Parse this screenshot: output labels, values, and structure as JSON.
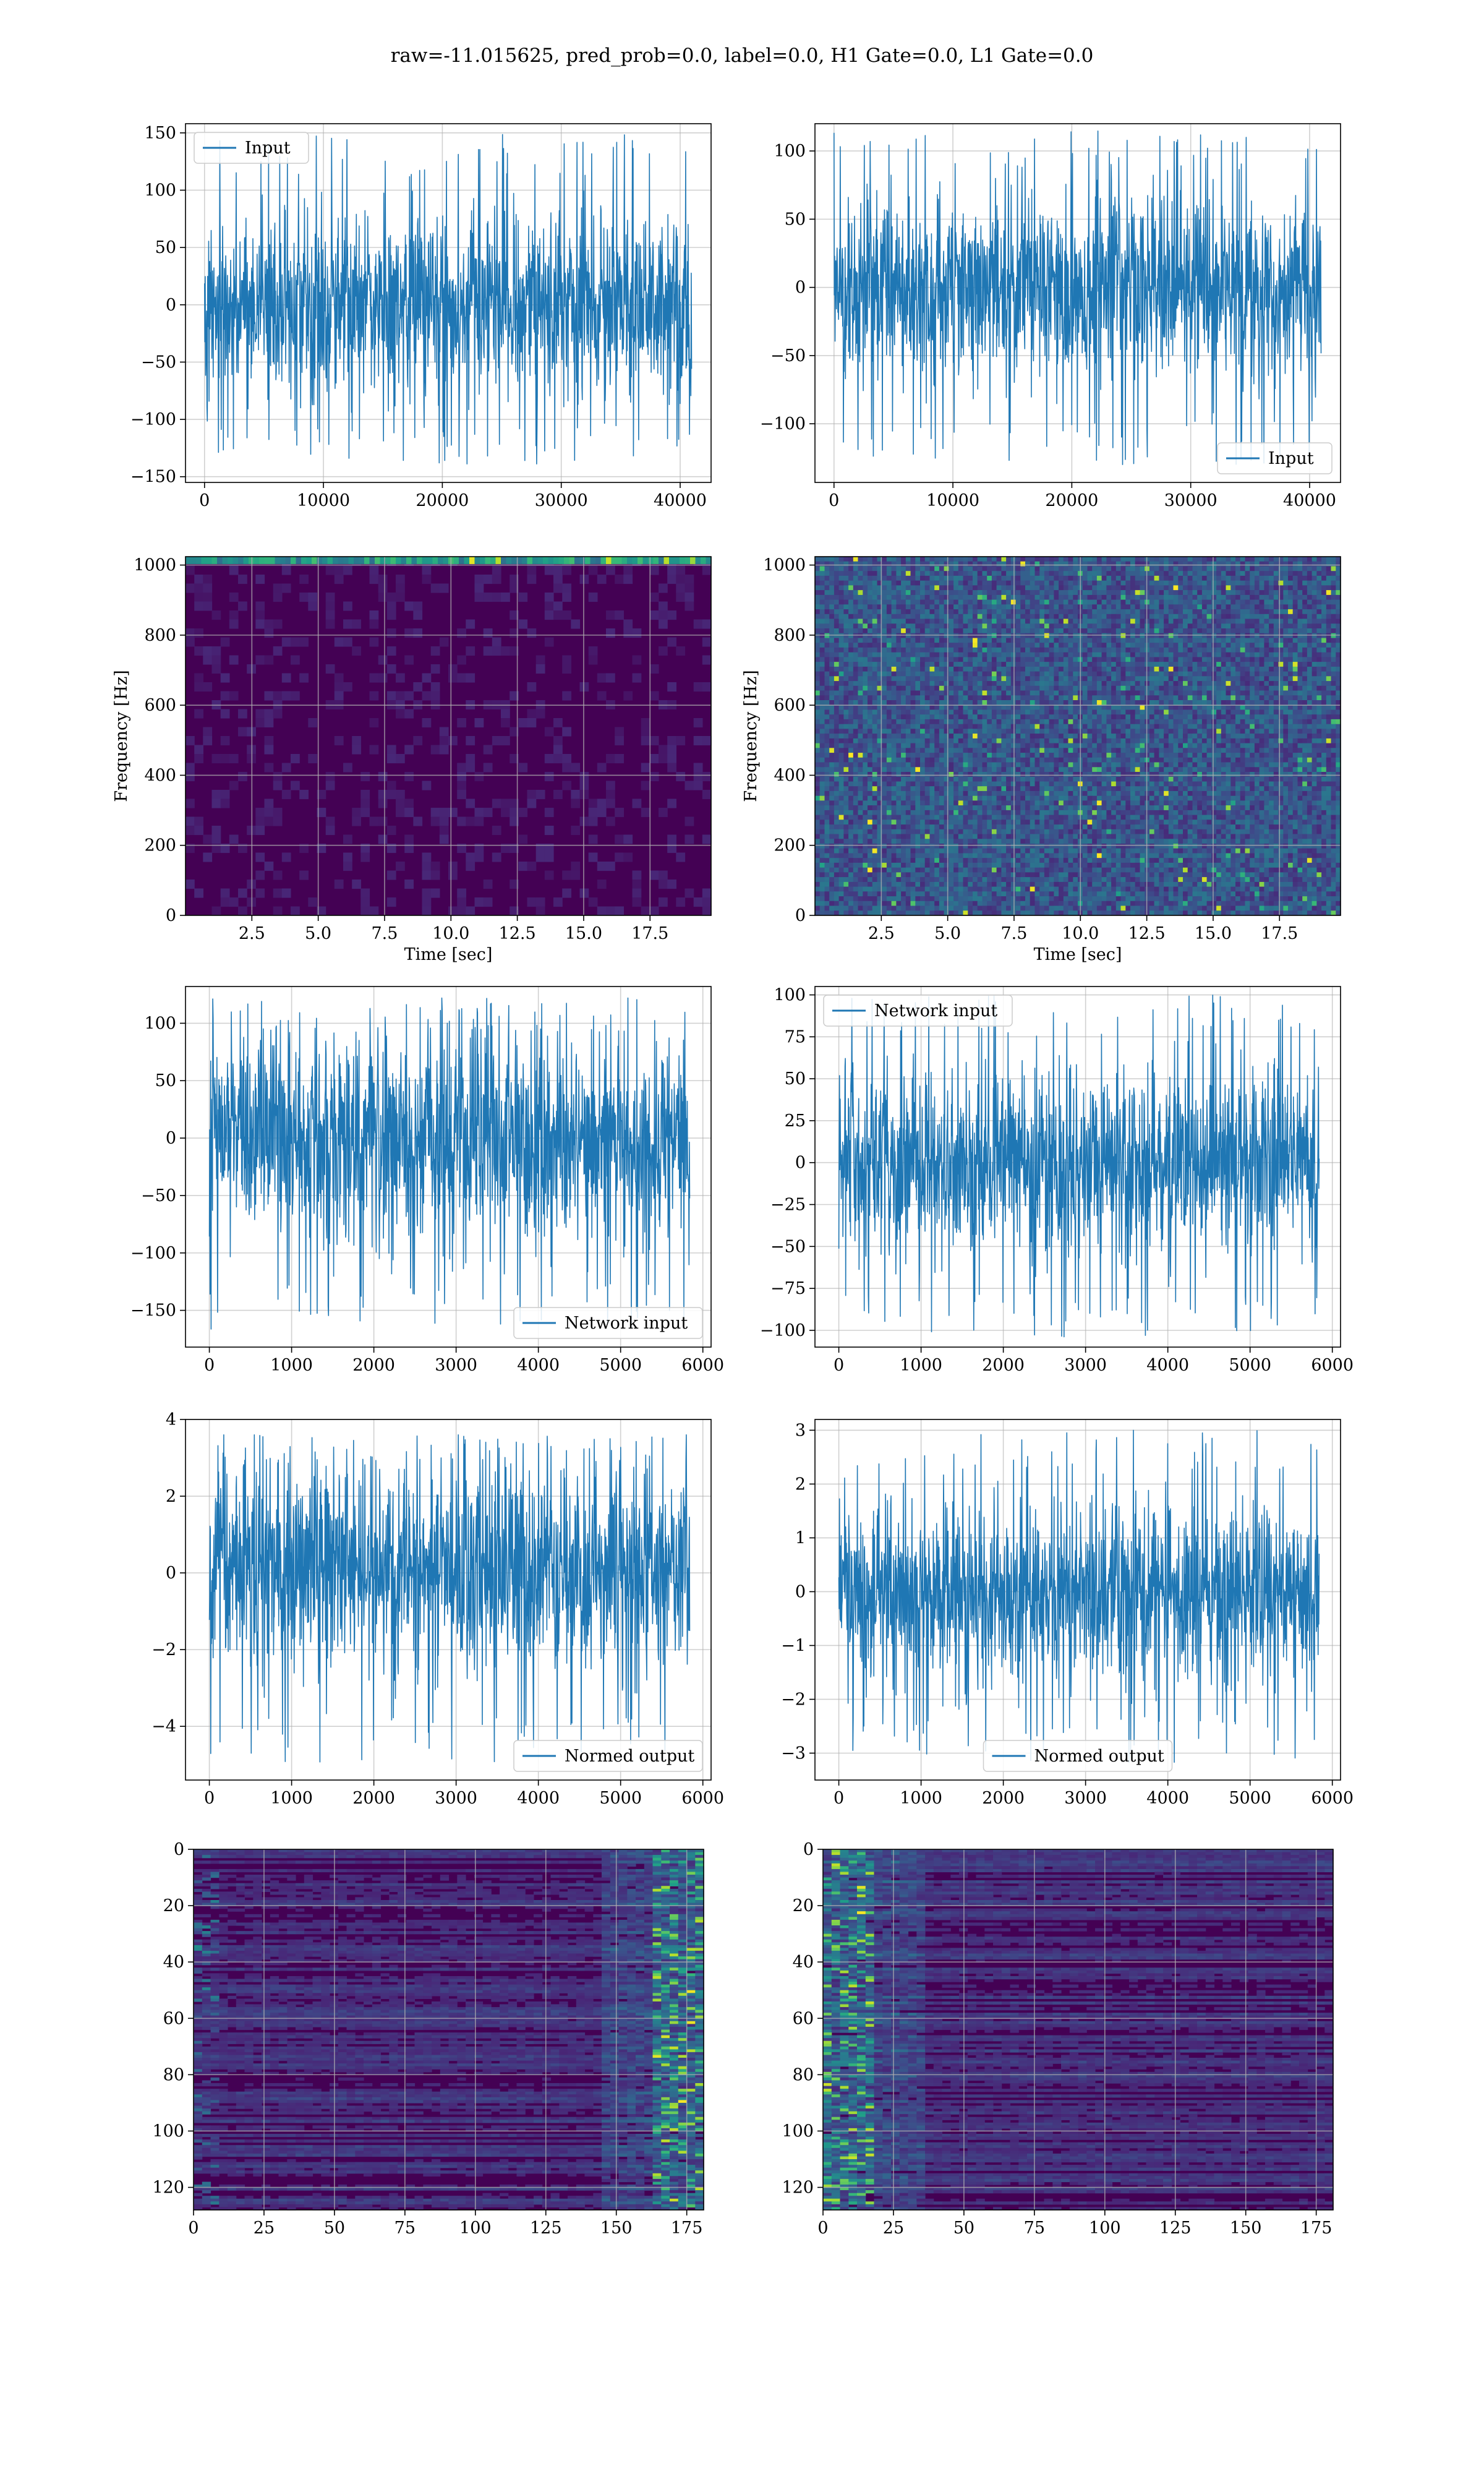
{
  "figure": {
    "suptitle": "raw=-11.015625, pred_prob=0.0, label=0.0, H1 Gate=0.0, L1 Gate=0.0"
  },
  "colors": {
    "series": "#1f77b4",
    "grid": "#b0b0b0",
    "viridis_dark": "#440154",
    "viridis_mid": "#21918c",
    "viridis_light": "#fde725"
  },
  "chart_data": [
    {
      "id": "h1-input",
      "type": "line",
      "signal": "noise",
      "xlim": [
        -1600,
        42600
      ],
      "ylim": [
        -155,
        158
      ],
      "xticks": [
        0,
        10000,
        20000,
        30000,
        40000
      ],
      "yticks": [
        -150,
        -100,
        -50,
        0,
        50,
        100,
        150
      ],
      "x_range": [
        0,
        40960
      ],
      "envelope": [
        -140,
        150
      ],
      "legend": "Input",
      "legend_loc": "upper left",
      "xlabel": "",
      "ylabel": "",
      "grid": true
    },
    {
      "id": "l1-input",
      "type": "line",
      "signal": "noise",
      "xlim": [
        -1600,
        42600
      ],
      "ylim": [
        -143,
        120
      ],
      "xticks": [
        0,
        10000,
        20000,
        30000,
        40000
      ],
      "yticks": [
        -100,
        -50,
        0,
        50,
        100
      ],
      "x_range": [
        0,
        40960
      ],
      "envelope": [
        -130,
        118
      ],
      "legend": "Input",
      "legend_loc": "lower right",
      "xlabel": "",
      "ylabel": "",
      "grid": true
    },
    {
      "id": "h1-spectrogram",
      "type": "heatmap",
      "style": "dark-with-top-band",
      "xlim": [
        0,
        19.8
      ],
      "ylim": [
        0,
        1024
      ],
      "xticks": [
        2.5,
        5.0,
        7.5,
        10.0,
        12.5,
        15.0,
        17.5
      ],
      "yticks": [
        0,
        200,
        400,
        600,
        800,
        1000
      ],
      "xlabel": "Time [sec]",
      "ylabel": "Frequency [Hz]",
      "colormap": "viridis",
      "grid": true
    },
    {
      "id": "l1-spectrogram",
      "type": "heatmap",
      "style": "speckle",
      "xlim": [
        0,
        19.8
      ],
      "ylim": [
        0,
        1024
      ],
      "xticks": [
        2.5,
        5.0,
        7.5,
        10.0,
        12.5,
        15.0,
        17.5
      ],
      "yticks": [
        0,
        200,
        400,
        600,
        800,
        1000
      ],
      "xlabel": "Time [sec]",
      "ylabel": "Frequency [Hz]",
      "colormap": "viridis",
      "grid": true
    },
    {
      "id": "h1-network-input",
      "type": "line",
      "signal": "noise",
      "xlim": [
        -290,
        6100
      ],
      "ylim": [
        -182,
        132
      ],
      "xticks": [
        0,
        1000,
        2000,
        3000,
        4000,
        5000,
        6000
      ],
      "yticks": [
        -150,
        -100,
        -50,
        0,
        50,
        100
      ],
      "x_range": [
        0,
        5840
      ],
      "envelope": [
        -167,
        122
      ],
      "legend": "Network input",
      "legend_loc": "lower right",
      "xlabel": "",
      "ylabel": "",
      "grid": true
    },
    {
      "id": "l1-network-input",
      "type": "line",
      "signal": "noise",
      "xlim": [
        -290,
        6100
      ],
      "ylim": [
        -110,
        105
      ],
      "xticks": [
        0,
        1000,
        2000,
        3000,
        4000,
        5000,
        6000
      ],
      "yticks": [
        -100,
        -75,
        -50,
        -25,
        0,
        25,
        50,
        75,
        100
      ],
      "x_range": [
        0,
        5840
      ],
      "envelope": [
        -104,
        100
      ],
      "legend": "Network input",
      "legend_loc": "upper left",
      "xlabel": "",
      "ylabel": "",
      "grid": true
    },
    {
      "id": "h1-normed-output",
      "type": "line",
      "signal": "noise",
      "xlim": [
        -290,
        6100
      ],
      "ylim": [
        -5.4,
        4.0
      ],
      "xticks": [
        0,
        1000,
        2000,
        3000,
        4000,
        5000,
        6000
      ],
      "yticks": [
        -4,
        -2,
        0,
        2,
        4
      ],
      "x_range": [
        0,
        5840
      ],
      "envelope": [
        -5.0,
        3.6
      ],
      "legend": "Normed output",
      "legend_loc": "lower right",
      "xlabel": "",
      "ylabel": "",
      "grid": true
    },
    {
      "id": "l1-normed-output",
      "type": "line",
      "signal": "noise",
      "xlim": [
        -290,
        6100
      ],
      "ylim": [
        -3.5,
        3.2
      ],
      "xticks": [
        0,
        1000,
        2000,
        3000,
        4000,
        5000,
        6000
      ],
      "yticks": [
        -3,
        -2,
        -1,
        0,
        1,
        2,
        3
      ],
      "x_range": [
        0,
        5840
      ],
      "envelope": [
        -3.2,
        3.0
      ],
      "legend": "Normed output",
      "legend_loc": "lower center",
      "xlabel": "",
      "ylabel": "",
      "grid": true
    },
    {
      "id": "h1-features",
      "type": "heatmap",
      "style": "rows-bright-right",
      "xlim": [
        0,
        181
      ],
      "ylim": [
        128,
        0
      ],
      "xticks": [
        0,
        25,
        50,
        75,
        100,
        125,
        150,
        175
      ],
      "yticks": [
        0,
        20,
        40,
        60,
        80,
        100,
        120
      ],
      "xlabel": "",
      "ylabel": "",
      "colormap": "viridis",
      "grid": true
    },
    {
      "id": "l1-features",
      "type": "heatmap",
      "style": "rows-bright-left",
      "xlim": [
        0,
        181
      ],
      "ylim": [
        128,
        0
      ],
      "xticks": [
        0,
        25,
        50,
        75,
        100,
        125,
        150,
        175
      ],
      "yticks": [
        0,
        20,
        40,
        60,
        80,
        100,
        120
      ],
      "xlabel": "",
      "ylabel": "",
      "colormap": "viridis",
      "grid": true
    }
  ]
}
